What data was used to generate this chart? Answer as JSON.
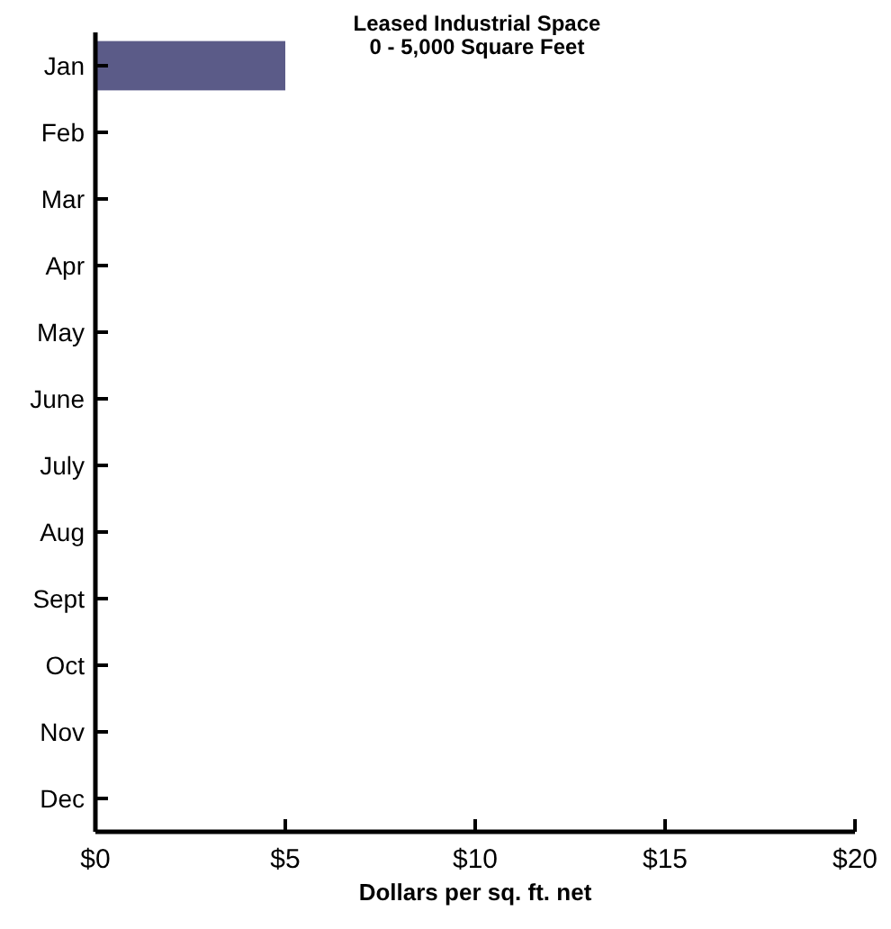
{
  "chart_data": {
    "type": "bar",
    "orientation": "horizontal",
    "title": "Leased Industrial Space",
    "subtitle": "0 - 5,000 Square Feet",
    "xlabel": "Dollars per sq. ft. net",
    "categories": [
      "Jan",
      "Feb",
      "Mar",
      "Apr",
      "May",
      "June",
      "July",
      "Aug",
      "Sept",
      "Oct",
      "Nov",
      "Dec"
    ],
    "values": [
      5,
      null,
      null,
      null,
      null,
      null,
      null,
      null,
      null,
      null,
      null,
      null
    ],
    "color": "#5b5b88",
    "xlim": [
      0,
      20
    ],
    "xticks": [
      {
        "value": 0,
        "label": "$0"
      },
      {
        "value": 5,
        "label": "$5"
      },
      {
        "value": 10,
        "label": "$10"
      },
      {
        "value": 15,
        "label": "$15"
      },
      {
        "value": 20,
        "label": "$20"
      }
    ],
    "grid": false
  }
}
